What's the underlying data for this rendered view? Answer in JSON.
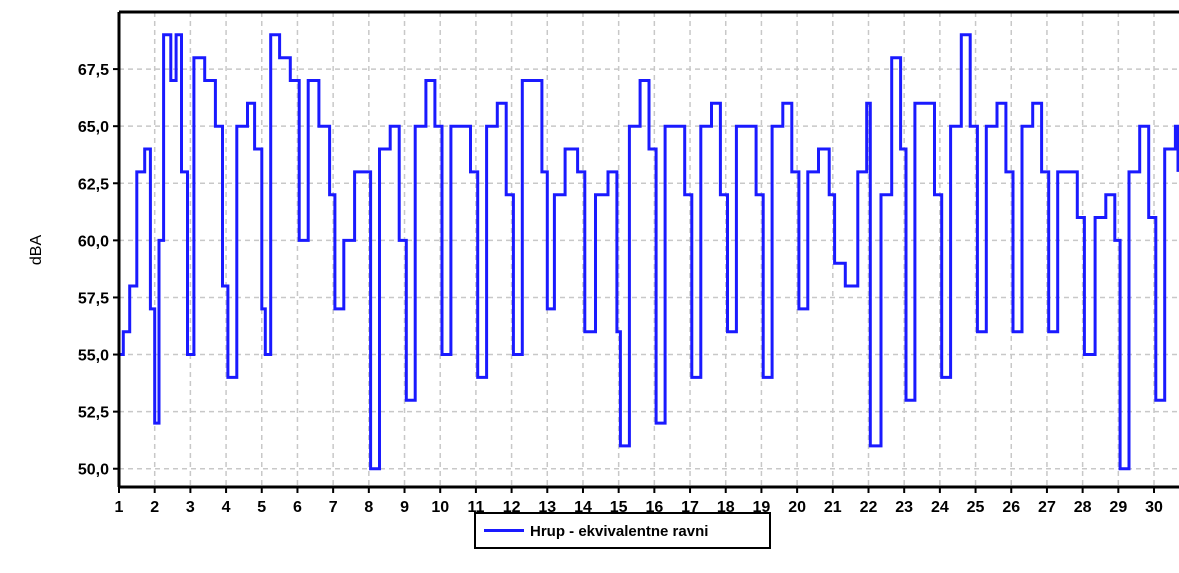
{
  "chart_data": {
    "type": "line",
    "title": "",
    "xlabel": "",
    "ylabel": "dBA",
    "xlim": [
      1,
      30.7
    ],
    "ylim": [
      49.2,
      70.0
    ],
    "x_ticks": [
      "1",
      "2",
      "3",
      "4",
      "5",
      "6",
      "7",
      "8",
      "9",
      "10",
      "11",
      "12",
      "13",
      "14",
      "15",
      "16",
      "17",
      "18",
      "19",
      "20",
      "21",
      "22",
      "23",
      "24",
      "25",
      "26",
      "27",
      "28",
      "29",
      "30"
    ],
    "y_ticks": [
      "50,0",
      "52,5",
      "55,0",
      "57,5",
      "60,0",
      "62,5",
      "65,0",
      "67,5"
    ],
    "grid": true,
    "legend_position": "bottom-center",
    "line_color": "#1a1aff",
    "series": [
      {
        "name": "Hrup - ekvivalentne ravni",
        "x": [
          1.0,
          1.12,
          1.3,
          1.5,
          1.72,
          1.88,
          2.0,
          2.12,
          2.25,
          2.45,
          2.6,
          2.75,
          2.92,
          3.1,
          3.4,
          3.7,
          3.9,
          4.05,
          4.3,
          4.6,
          4.8,
          5.0,
          5.1,
          5.25,
          5.5,
          5.8,
          6.05,
          6.3,
          6.6,
          6.9,
          7.05,
          7.3,
          7.6,
          7.85,
          8.05,
          8.3,
          8.6,
          8.85,
          9.05,
          9.3,
          9.6,
          9.85,
          10.05,
          10.3,
          10.6,
          10.85,
          11.05,
          11.3,
          11.6,
          11.85,
          12.05,
          12.3,
          12.6,
          12.85,
          13.0,
          13.2,
          13.5,
          13.85,
          14.05,
          14.35,
          14.7,
          14.95,
          15.05,
          15.3,
          15.6,
          15.85,
          16.05,
          16.3,
          16.6,
          16.85,
          17.05,
          17.3,
          17.6,
          17.85,
          18.05,
          18.3,
          18.6,
          18.85,
          19.05,
          19.3,
          19.6,
          19.85,
          20.05,
          20.3,
          20.6,
          20.9,
          21.05,
          21.35,
          21.7,
          21.95,
          22.05,
          22.35,
          22.65,
          22.9,
          23.05,
          23.3,
          23.6,
          23.85,
          24.05,
          24.3,
          24.6,
          24.85,
          25.05,
          25.3,
          25.6,
          25.85,
          26.05,
          26.3,
          26.6,
          26.85,
          27.05,
          27.3,
          27.6,
          27.85,
          28.05,
          28.35,
          28.65,
          28.9,
          29.05,
          29.3,
          29.6,
          29.85,
          30.05,
          30.3,
          30.6,
          30.7
        ],
        "y": [
          55.0,
          56.0,
          58.0,
          63.0,
          64.0,
          57.0,
          52.0,
          60.0,
          69.0,
          67.0,
          69.0,
          63.0,
          55.0,
          68.0,
          67.0,
          65.0,
          58.0,
          54.0,
          65.0,
          66.0,
          64.0,
          57.0,
          55.0,
          69.0,
          68.0,
          67.0,
          60.0,
          67.0,
          65.0,
          62.0,
          57.0,
          60.0,
          63.0,
          63.0,
          50.0,
          64.0,
          65.0,
          60.0,
          53.0,
          65.0,
          67.0,
          65.0,
          55.0,
          65.0,
          65.0,
          63.0,
          54.0,
          65.0,
          66.0,
          62.0,
          55.0,
          67.0,
          67.0,
          63.0,
          57.0,
          62.0,
          64.0,
          63.0,
          56.0,
          62.0,
          63.0,
          56.0,
          51.0,
          65.0,
          67.0,
          64.0,
          52.0,
          65.0,
          65.0,
          62.0,
          54.0,
          65.0,
          66.0,
          62.0,
          56.0,
          65.0,
          65.0,
          62.0,
          54.0,
          65.0,
          66.0,
          63.0,
          57.0,
          63.0,
          64.0,
          62.0,
          59.0,
          58.0,
          63.0,
          66.0,
          51.0,
          62.0,
          68.0,
          64.0,
          53.0,
          66.0,
          66.0,
          62.0,
          54.0,
          65.0,
          69.0,
          65.0,
          56.0,
          65.0,
          66.0,
          63.0,
          56.0,
          65.0,
          66.0,
          63.0,
          56.0,
          63.0,
          63.0,
          61.0,
          55.0,
          61.0,
          62.0,
          60.0,
          50.0,
          63.0,
          65.0,
          61.0,
          53.0,
          64.0,
          65.0,
          63.0
        ]
      }
    ]
  }
}
